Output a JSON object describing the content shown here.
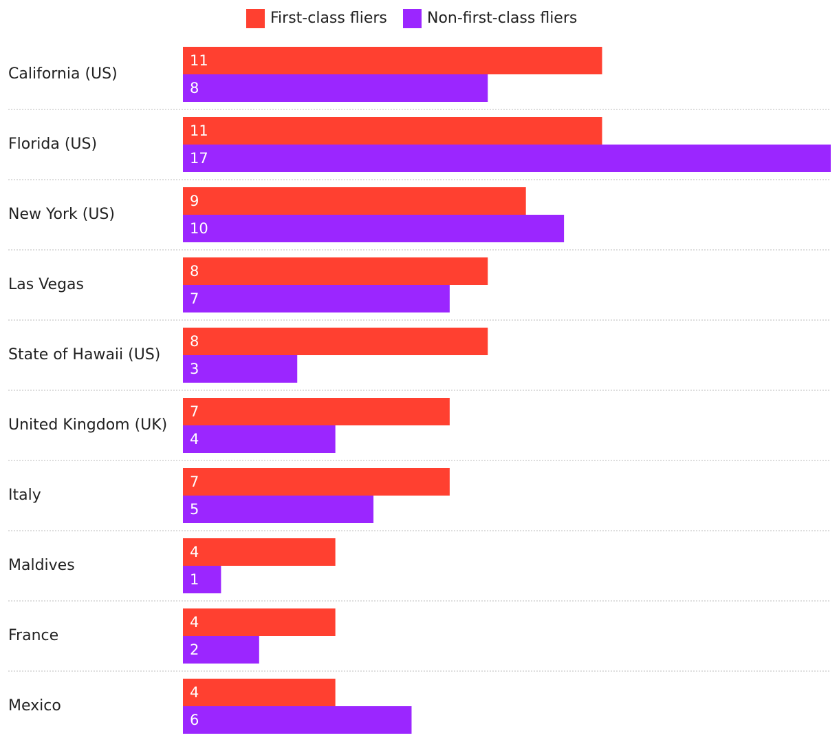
{
  "chart_data": {
    "type": "bar",
    "orientation": "horizontal",
    "categories": [
      "California (US)",
      "Florida (US)",
      "New York (US)",
      "Las Vegas",
      "State of Hawaii (US)",
      "United Kingdom (UK)",
      "Italy",
      "Maldives",
      "France",
      "Mexico"
    ],
    "series": [
      {
        "name": "First-class fliers",
        "color": "#ff4030",
        "values": [
          11,
          11,
          9,
          8,
          8,
          7,
          7,
          4,
          4,
          4
        ]
      },
      {
        "name": "Non-first-class fliers",
        "color": "#9b26ff",
        "values": [
          8,
          17,
          10,
          7,
          3,
          4,
          5,
          1,
          2,
          6
        ]
      }
    ],
    "xlim": [
      0,
      17
    ],
    "legend": "top"
  }
}
